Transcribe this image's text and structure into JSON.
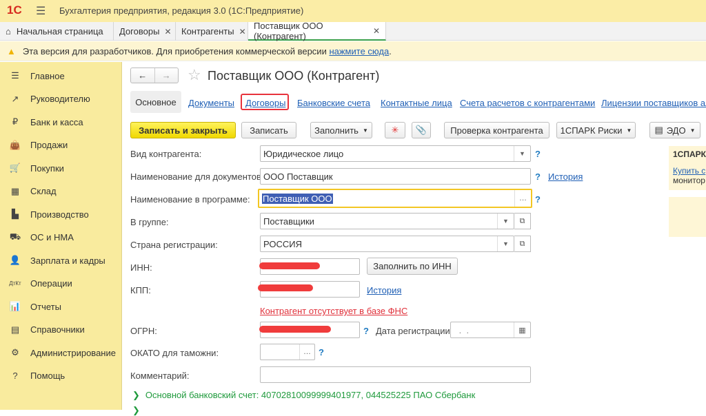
{
  "app": {
    "logo": "1С",
    "title": "Бухгалтерия предприятия, редакция 3.0  (1С:Предприятие)"
  },
  "tabs": [
    {
      "label": "Начальная страница"
    },
    {
      "label": "Договоры"
    },
    {
      "label": "Контрагенты"
    },
    {
      "label": "Поставщик ООО (Контрагент)"
    }
  ],
  "warning": {
    "text": "Эта версия для разработчиков. Для приобретения коммерческой версии ",
    "link": "нажмите сюда",
    "end": "."
  },
  "sidebar": {
    "items": [
      {
        "label": "Главное",
        "icon": "☰"
      },
      {
        "label": "Руководителю",
        "icon": "↗"
      },
      {
        "label": "Банк и касса",
        "icon": "₽"
      },
      {
        "label": "Продажи",
        "icon": "👜"
      },
      {
        "label": "Покупки",
        "icon": "🛒"
      },
      {
        "label": "Склад",
        "icon": "▦"
      },
      {
        "label": "Производство",
        "icon": "▙"
      },
      {
        "label": "ОС и НМА",
        "icon": "⛟"
      },
      {
        "label": "Зарплата и кадры",
        "icon": "👤"
      },
      {
        "label": "Операции",
        "icon": "ДтКт"
      },
      {
        "label": "Отчеты",
        "icon": "📊"
      },
      {
        "label": "Справочники",
        "icon": "▤"
      },
      {
        "label": "Администрирование",
        "icon": "⚙"
      },
      {
        "label": "Помощь",
        "icon": "?"
      }
    ]
  },
  "form": {
    "title": "Поставщик ООО (Контрагент)",
    "subtabs": [
      "Основное",
      "Документы",
      "Договоры",
      "Банковские счета",
      "Контактные лица",
      "Счета расчетов с контрагентами",
      "Лицензии поставщиков ал"
    ],
    "toolbar": {
      "save_close": "Записать и закрыть",
      "save": "Записать",
      "fill": "Заполнить",
      "check": "Проверка контрагента",
      "spark": "1СПАРК Риски",
      "edo": "ЭДО"
    },
    "fields": {
      "kind_label": "Вид контрагента:",
      "kind": "Юридическое лицо",
      "doc_name_label": "Наименование для документов:",
      "doc_name": "ООО Поставщик",
      "prog_name_label": "Наименование в программе:",
      "prog_name": "Поставщик ООО",
      "group_label": "В группе:",
      "group": "Поставщики",
      "country_label": "Страна регистрации:",
      "country": "РОССИЯ",
      "inn_label": "ИНН:",
      "fill_inn": "Заполнить по ИНН",
      "kpp_label": "КПП:",
      "fns_warning": "Контрагент отсутствует в базе ФНС",
      "ogrn_label": "ОГРН:",
      "reg_date_label": "Дата регистрации:",
      "reg_date": " .  .",
      "okato_label": "ОКАТО для таможни:",
      "comment_label": "Комментарий:",
      "history": "История",
      "bank_account": "Основной банковский счет: 40702810099999401977, 044525225 ПАО Сбербанк"
    },
    "help": "?"
  },
  "spark_panel": {
    "title": "1СПАРК",
    "link": "Купить с",
    "text": "монитор"
  }
}
